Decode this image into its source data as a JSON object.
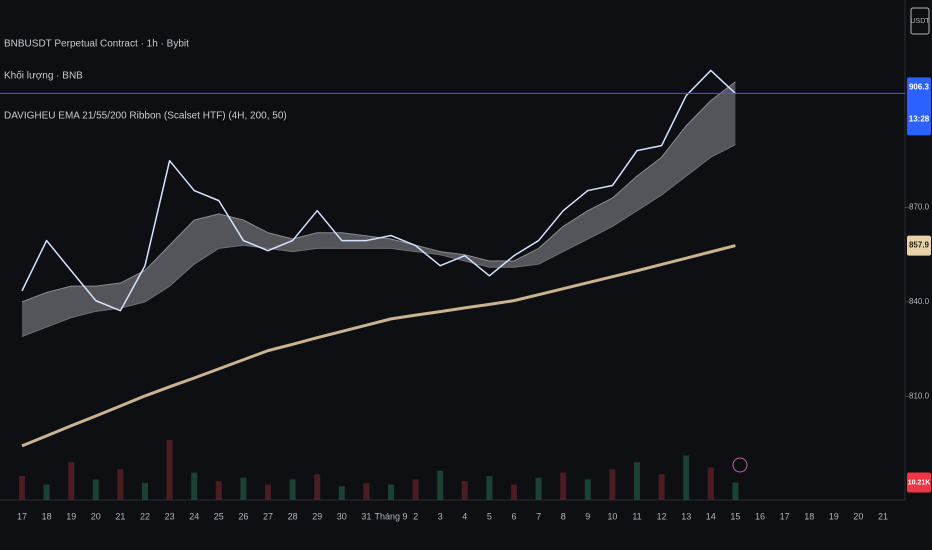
{
  "chart_data": {
    "type": "line",
    "title": "BNBUSDT Perpetual Contract · 1h · Bybit",
    "subtitle": "Khối lượng · BNB",
    "indicator": "DAVIGHEU EMA 21/55/200 Ribbon (Scalset HTF) (4H, 200, 50)",
    "currency": "USDT",
    "categories": [
      "17",
      "18",
      "19",
      "20",
      "21",
      "22",
      "23",
      "24",
      "25",
      "26",
      "27",
      "28",
      "29",
      "30",
      "31",
      "Tháng 9",
      "2",
      "3",
      "4",
      "5",
      "6",
      "7",
      "8",
      "9",
      "10",
      "11",
      "12",
      "13",
      "14",
      "15",
      "16",
      "17",
      "18",
      "19",
      "20",
      "21"
    ],
    "series": [
      {
        "name": "BNBUSDT",
        "color": "#d6e3ff",
        "values": [
          843.5,
          859.5,
          849.9,
          840.4,
          837.2,
          851.5,
          884.9,
          875.4,
          872.2,
          859.5,
          856.3,
          859.5,
          869.0,
          859.5,
          859.5,
          861.1,
          857.9,
          851.5,
          854.7,
          848.3,
          854.7,
          859.5,
          869.0,
          875.4,
          877.0,
          888.1,
          889.7,
          905.6,
          913.6,
          906.3,
          null,
          null,
          null,
          null,
          null,
          null
        ]
      },
      {
        "name": "EMA 21",
        "color": "#8a8c93",
        "values": [
          840,
          843,
          845,
          845,
          846,
          850,
          858,
          866,
          868,
          866,
          862,
          860,
          862,
          862,
          861,
          860,
          858,
          856,
          855,
          853,
          853,
          857,
          864,
          869,
          873,
          880,
          886,
          896,
          904,
          910,
          null,
          null,
          null,
          null,
          null,
          null
        ]
      },
      {
        "name": "EMA 55",
        "color": "#6d6f76",
        "values": [
          829,
          832,
          835,
          837,
          838,
          840,
          845,
          852,
          857,
          858,
          857,
          856,
          857,
          857,
          857,
          857,
          856,
          855,
          853,
          851,
          851,
          852,
          856,
          860,
          864,
          869,
          874,
          880,
          886,
          890,
          null,
          null,
          null,
          null,
          null,
          null
        ]
      },
      {
        "name": "EMA 200",
        "color": "#c9b392",
        "values": [
          794.2,
          797.4,
          800.6,
          803.7,
          806.9,
          810.1,
          813.0,
          815.8,
          818.7,
          821.6,
          824.5,
          826.5,
          828.6,
          830.6,
          832.6,
          834.6,
          835.8,
          836.9,
          838.1,
          839.2,
          840.4,
          842.3,
          844.2,
          846.1,
          848.0,
          849.9,
          851.9,
          853.9,
          855.9,
          857.9,
          null,
          null,
          null,
          null,
          null,
          null
        ]
      }
    ],
    "volume": {
      "values": [
        14,
        9,
        22,
        12,
        18,
        10,
        35,
        16,
        11,
        13,
        9,
        12,
        15,
        8,
        10,
        9,
        12,
        17,
        11,
        14,
        9,
        13,
        16,
        12,
        18,
        22,
        15,
        26,
        19,
        10.21,
        null,
        null,
        null,
        null,
        null,
        null
      ],
      "last_value": 10.21,
      "last_label": "10.21K",
      "color": "#f23645"
    },
    "last_price": 906.3,
    "countdown": "13:28",
    "ema_last": 857.9,
    "ylim": [
      777,
      936
    ],
    "yticks": [
      {
        "value": 870,
        "label": "870.0"
      },
      {
        "value": 840,
        "label": "840.0"
      },
      {
        "value": 810,
        "label": "810.0"
      }
    ],
    "grid": false
  }
}
